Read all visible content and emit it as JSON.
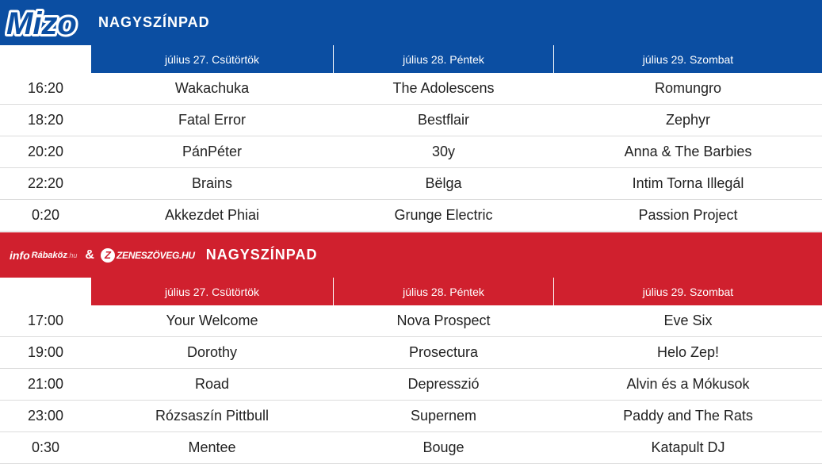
{
  "stage1": {
    "logo": "Mizo",
    "title": "NAGYSZÍNPAD",
    "colors": {
      "banner": "#0b4ea2"
    },
    "days": [
      "július 27. Csütörtök",
      "július 28. Péntek",
      "július 29. Szombat"
    ],
    "rows": [
      {
        "time": "16:20",
        "d1": "Wakachuka",
        "d2": "The Adolescens",
        "d3": "Romungro"
      },
      {
        "time": "18:20",
        "d1": "Fatal Error",
        "d2": "Bestflair",
        "d3": "Zephyr"
      },
      {
        "time": "20:20",
        "d1": "PánPéter",
        "d2": "30y",
        "d3": "Anna & The Barbies"
      },
      {
        "time": "22:20",
        "d1": "Brains",
        "d2": "Bëlga",
        "d3": "Intim Torna Illegál"
      },
      {
        "time": "0:20",
        "d1": "Akkezdet Phiai",
        "d2": "Grunge Electric",
        "d3": "Passion Project"
      }
    ]
  },
  "stage2": {
    "logo_info": "info",
    "logo_rabakoz": "Rábaköz",
    "logo_rabakoz_tld": ".hu",
    "amp": "&",
    "logo_zene_letter": "Z",
    "logo_zene": "ZENESZÖVEG.HU",
    "title": "NAGYSZÍNPAD",
    "colors": {
      "banner": "#d0202e"
    },
    "days": [
      "július 27. Csütörtök",
      "július 28. Péntek",
      "július 29. Szombat"
    ],
    "rows": [
      {
        "time": "17:00",
        "d1": "Your Welcome",
        "d2": "Nova Prospect",
        "d3": "Eve Six"
      },
      {
        "time": "19:00",
        "d1": "Dorothy",
        "d2": "Prosectura",
        "d3": "Helo Zep!"
      },
      {
        "time": "21:00",
        "d1": "Road",
        "d2": "Depresszió",
        "d3": "Alvin és a Mókusok"
      },
      {
        "time": "23:00",
        "d1": "Rózsaszín Pittbull",
        "d2": "Supernem",
        "d3": "Paddy and The Rats"
      },
      {
        "time": "0:30",
        "d1": "Mentee",
        "d2": "Bouge",
        "d3": "Katapult DJ"
      }
    ]
  }
}
